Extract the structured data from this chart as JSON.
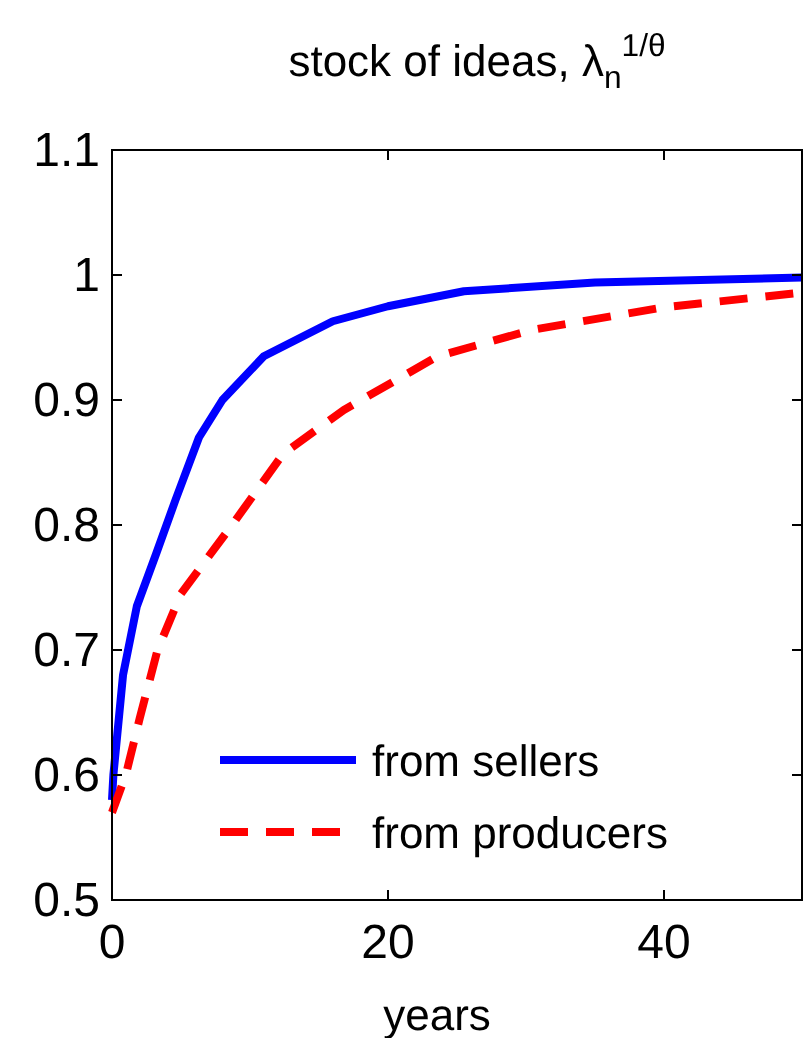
{
  "chart_data": {
    "type": "line",
    "title": "stock of ideas, λ$_{n}$$^{1/θ}$",
    "xlabel": "years",
    "xlim": [
      0,
      50
    ],
    "xticks": [
      0,
      20,
      40
    ],
    "ylim": [
      0.5,
      1.1
    ],
    "yticks": [
      0.5,
      0.6,
      0.7,
      0.8,
      0.9,
      1,
      1.1
    ],
    "grid": false,
    "legend": "bottom right",
    "series": [
      {
        "name": "from sellers",
        "color": "#0000ff",
        "line_style": "solid",
        "x": [
          0,
          0.1,
          0.8,
          1.8,
          3.2,
          4.6,
          6.3,
          8,
          11,
          16,
          20,
          25.5,
          35,
          50
        ],
        "values": [
          0.58,
          0.6,
          0.68,
          0.735,
          0.777,
          0.82,
          0.87,
          0.9,
          0.935,
          0.963,
          0.975,
          0.987,
          0.994,
          0.998
        ]
      },
      {
        "name": "from producers",
        "color": "#ff0000",
        "line_style": "dashed",
        "x": [
          0,
          1,
          2,
          3.3,
          5,
          8.7,
          12.4,
          16.8,
          23.6,
          30.4,
          39.9,
          50
        ],
        "values": [
          0.57,
          0.6,
          0.645,
          0.7,
          0.745,
          0.8,
          0.857,
          0.892,
          0.935,
          0.956,
          0.974,
          0.986
        ]
      }
    ]
  }
}
